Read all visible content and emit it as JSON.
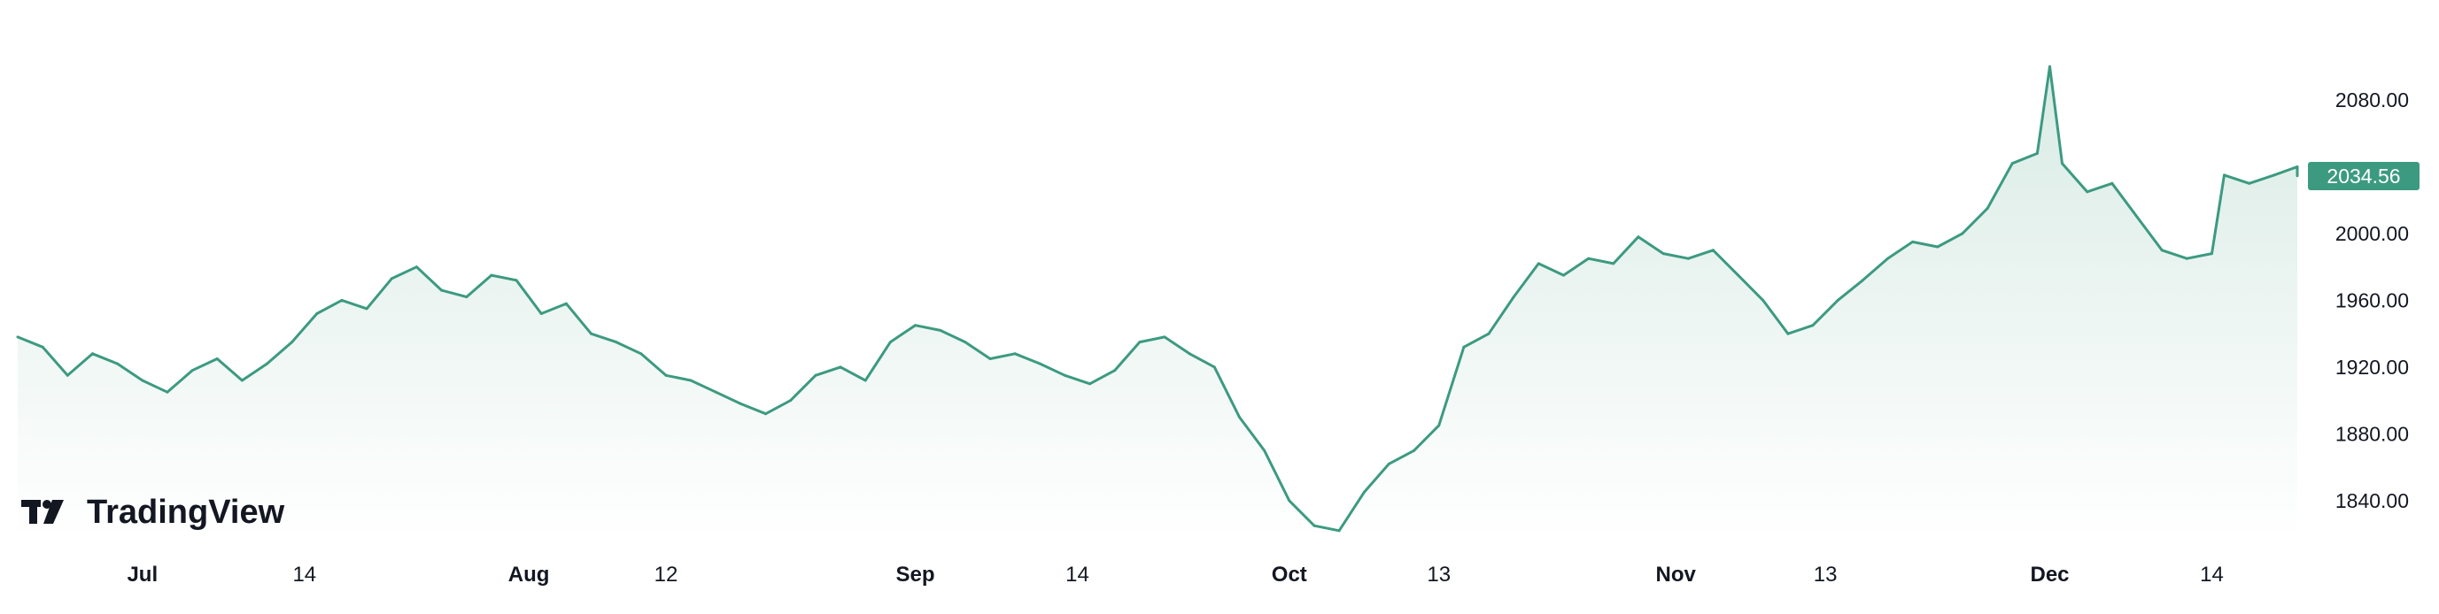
{
  "branding": {
    "logo_text": "TradingView"
  },
  "colors": {
    "line": "#3c9a80",
    "area_top": "#d9ebe5",
    "area_bottom": "#ffffff",
    "badge_bg": "#3c9a80",
    "badge_text": "#ffffff",
    "text": "#131722"
  },
  "chart_data": {
    "type": "area",
    "title": "",
    "xlabel": "",
    "ylabel": "",
    "x_tick_labels": [
      "Jul",
      "14",
      "Aug",
      "12",
      "Sep",
      "14",
      "Oct",
      "13",
      "Nov",
      "13",
      "Dec",
      "14"
    ],
    "x_tick_bold": [
      true,
      false,
      true,
      false,
      true,
      false,
      true,
      false,
      true,
      false,
      true,
      false
    ],
    "y_tick_values": [
      1840,
      1880,
      1920,
      1960,
      2000,
      2080
    ],
    "y_tick_labels": [
      "1840.00",
      "1880.00",
      "1920.00",
      "1960.00",
      "2000.00",
      "2080.00"
    ],
    "ylim": [
      1815,
      2120
    ],
    "last_price": "2034.56",
    "grid": false,
    "series": [
      {
        "x": [
          "Jun 21",
          "Jun 23",
          "Jun 25",
          "Jun 27",
          "Jun 29",
          "Jul 1",
          "Jul 3",
          "Jul 5",
          "Jul 7",
          "Jul 9",
          "Jul 11",
          "Jul 13",
          "Jul 15",
          "Jul 17",
          "Jul 19",
          "Jul 21",
          "Jul 23",
          "Jul 25",
          "Jul 27",
          "Jul 29",
          "Jul 31",
          "Aug 2",
          "Aug 4",
          "Aug 6",
          "Aug 8",
          "Aug 10",
          "Aug 12",
          "Aug 14",
          "Aug 16",
          "Aug 18",
          "Aug 20",
          "Aug 22",
          "Aug 24",
          "Aug 26",
          "Aug 28",
          "Aug 30",
          "Sep 1",
          "Sep 3",
          "Sep 5",
          "Sep 7",
          "Sep 9",
          "Sep 11",
          "Sep 13",
          "Sep 15",
          "Sep 17",
          "Sep 19",
          "Sep 21",
          "Sep 23",
          "Sep 25",
          "Sep 27",
          "Sep 29",
          "Oct 1",
          "Oct 3",
          "Oct 5",
          "Oct 7",
          "Oct 9",
          "Oct 11",
          "Oct 13",
          "Oct 15",
          "Oct 17",
          "Oct 19",
          "Oct 21",
          "Oct 23",
          "Oct 25",
          "Oct 27",
          "Oct 29",
          "Oct 31",
          "Nov 2",
          "Nov 4",
          "Nov 6",
          "Nov 8",
          "Nov 10",
          "Nov 12",
          "Nov 14",
          "Nov 16",
          "Nov 18",
          "Nov 20",
          "Nov 22",
          "Nov 24",
          "Nov 26",
          "Nov 28",
          "Nov 30",
          "Dec 1",
          "Dec 2",
          "Dec 4",
          "Dec 6",
          "Dec 8",
          "Dec 10",
          "Dec 12",
          "Dec 14",
          "Dec 15",
          "Dec 17",
          "Dec 19",
          "Dec 21",
          "Dec 23"
        ],
        "values": [
          1938,
          1932,
          1915,
          1928,
          1922,
          1912,
          1905,
          1918,
          1925,
          1912,
          1922,
          1935,
          1952,
          1960,
          1955,
          1973,
          1980,
          1966,
          1962,
          1975,
          1972,
          1952,
          1958,
          1940,
          1935,
          1928,
          1915,
          1912,
          1905,
          1898,
          1892,
          1900,
          1915,
          1920,
          1912,
          1935,
          1945,
          1942,
          1935,
          1925,
          1928,
          1922,
          1915,
          1910,
          1918,
          1935,
          1938,
          1928,
          1920,
          1890,
          1870,
          1840,
          1825,
          1822,
          1845,
          1862,
          1870,
          1885,
          1932,
          1940,
          1962,
          1982,
          1975,
          1985,
          1982,
          1998,
          1988,
          1985,
          1990,
          1975,
          1960,
          1940,
          1945,
          1960,
          1972,
          1985,
          1995,
          1992,
          2000,
          2015,
          2042,
          2048,
          2100,
          2042,
          2025,
          2030,
          2010,
          1990,
          1985,
          1988,
          2035,
          2030,
          2035,
          2040,
          2034.56
        ]
      }
    ]
  }
}
